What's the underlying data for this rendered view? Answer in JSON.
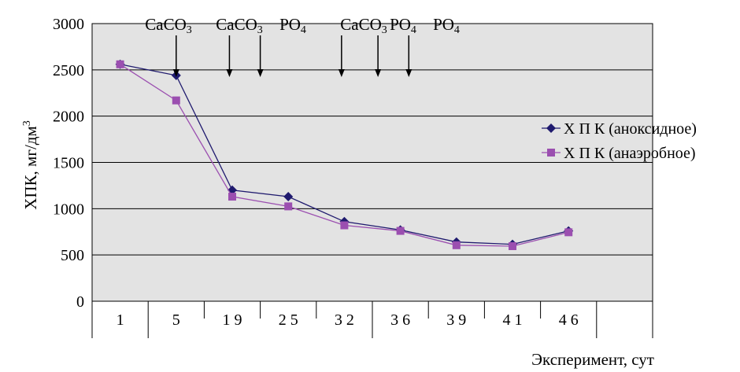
{
  "chart_data": {
    "type": "line",
    "title": "",
    "xlabel": "Эксперимент, сут",
    "ylabel": "ХПК, мг/дм",
    "ylabel_superscript": "3",
    "ylim": [
      0,
      3000
    ],
    "yticks": [
      "0",
      "500",
      "1000",
      "1500",
      "2000",
      "2500",
      "3000"
    ],
    "categories": [
      "1",
      "5",
      "1 9",
      "2 5",
      "3 2",
      "3 6",
      "3 9",
      "4 1",
      "4 6"
    ],
    "grid": true,
    "legend_position": "right",
    "series": [
      {
        "name": "Х П К (аноксидное)",
        "color": "#1f1a6e",
        "marker": "diamond",
        "values": [
          2560,
          2440,
          1200,
          1130,
          860,
          770,
          640,
          615,
          760
        ]
      },
      {
        "name": "Х П К (анаэробное)",
        "color": "#9b4fb0",
        "marker": "square",
        "values": [
          2560,
          2170,
          1130,
          1025,
          820,
          760,
          605,
          595,
          745
        ]
      }
    ],
    "annotations": [
      {
        "label": "CaCO",
        "subscript": "3",
        "arrow_at": 1.5
      },
      {
        "label": "CaCO",
        "subscript": "3",
        "arrow_at": 2.45
      },
      {
        "label": "PO",
        "subscript": "4",
        "arrow_at": 3.0
      },
      {
        "label": "CaCO",
        "subscript": "3",
        "arrow_at": 4.45
      },
      {
        "label": "PO",
        "subscript": "4",
        "arrow_at": 5.1
      },
      {
        "label": "PO",
        "subscript": "4",
        "arrow_at": 5.65
      }
    ]
  }
}
